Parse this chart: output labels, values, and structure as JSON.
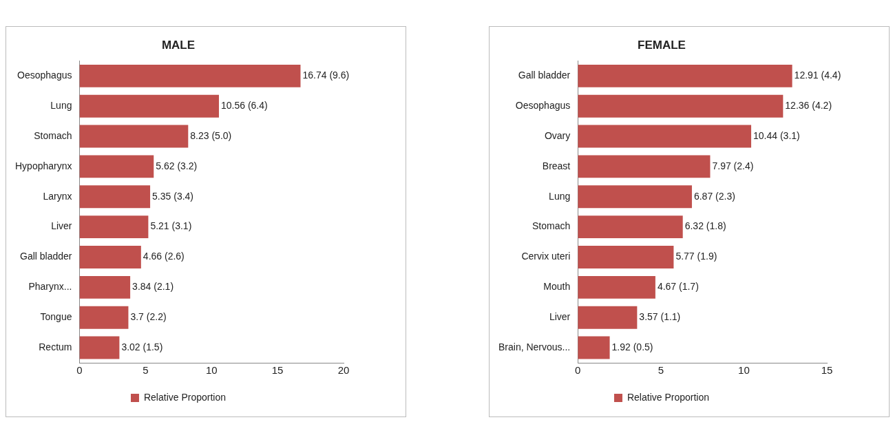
{
  "chart_data": [
    {
      "type": "bar",
      "orientation": "horizontal",
      "title": "MALE",
      "categories": [
        "Oesophagus",
        "Lung",
        "Stomach",
        "Hypopharynx",
        "Larynx",
        "Liver",
        "Gall bladder",
        "Pharynx...",
        "Tongue",
        "Rectum"
      ],
      "series": [
        {
          "name": "Relative Proportion",
          "color": "#c0504d",
          "values": [
            16.74,
            10.56,
            8.23,
            5.62,
            5.35,
            5.21,
            4.66,
            3.84,
            3.7,
            3.02
          ],
          "value_labels": [
            "16.74 (9.6)",
            "10.56 (6.4)",
            "8.23 (5.0)",
            "5.62 (3.2)",
            "5.35 (3.4)",
            "5.21 (3.1)",
            "4.66 (2.6)",
            "3.84 (2.1)",
            "3.7 (2.2)",
            "3.02 (1.5)"
          ]
        }
      ],
      "xlim": [
        0,
        20
      ],
      "xticks": [
        0,
        5,
        10,
        15,
        20
      ],
      "grid": false,
      "legend": "bottom"
    },
    {
      "type": "bar",
      "orientation": "horizontal",
      "title": "FEMALE",
      "categories": [
        "Gall bladder",
        "Oesophagus",
        "Ovary",
        "Breast",
        "Lung",
        "Stomach",
        "Cervix uteri",
        "Mouth",
        "Liver",
        "Brain, Nervous..."
      ],
      "series": [
        {
          "name": "Relative Proportion",
          "color": "#c0504d",
          "values": [
            12.91,
            12.36,
            10.44,
            7.97,
            6.87,
            6.32,
            5.77,
            4.67,
            3.57,
            1.92
          ],
          "value_labels": [
            "12.91 (4.4)",
            "12.36 (4.2)",
            "10.44 (3.1)",
            "7.97 (2.4)",
            "6.87 (2.3)",
            "6.32 (1.8)",
            "5.77 (1.9)",
            "4.67 (1.7)",
            "3.57 (1.1)",
            "1.92 (0.5)"
          ]
        }
      ],
      "xlim": [
        0,
        15
      ],
      "xticks": [
        0,
        5,
        10,
        15
      ],
      "grid": false,
      "legend": "bottom"
    }
  ]
}
